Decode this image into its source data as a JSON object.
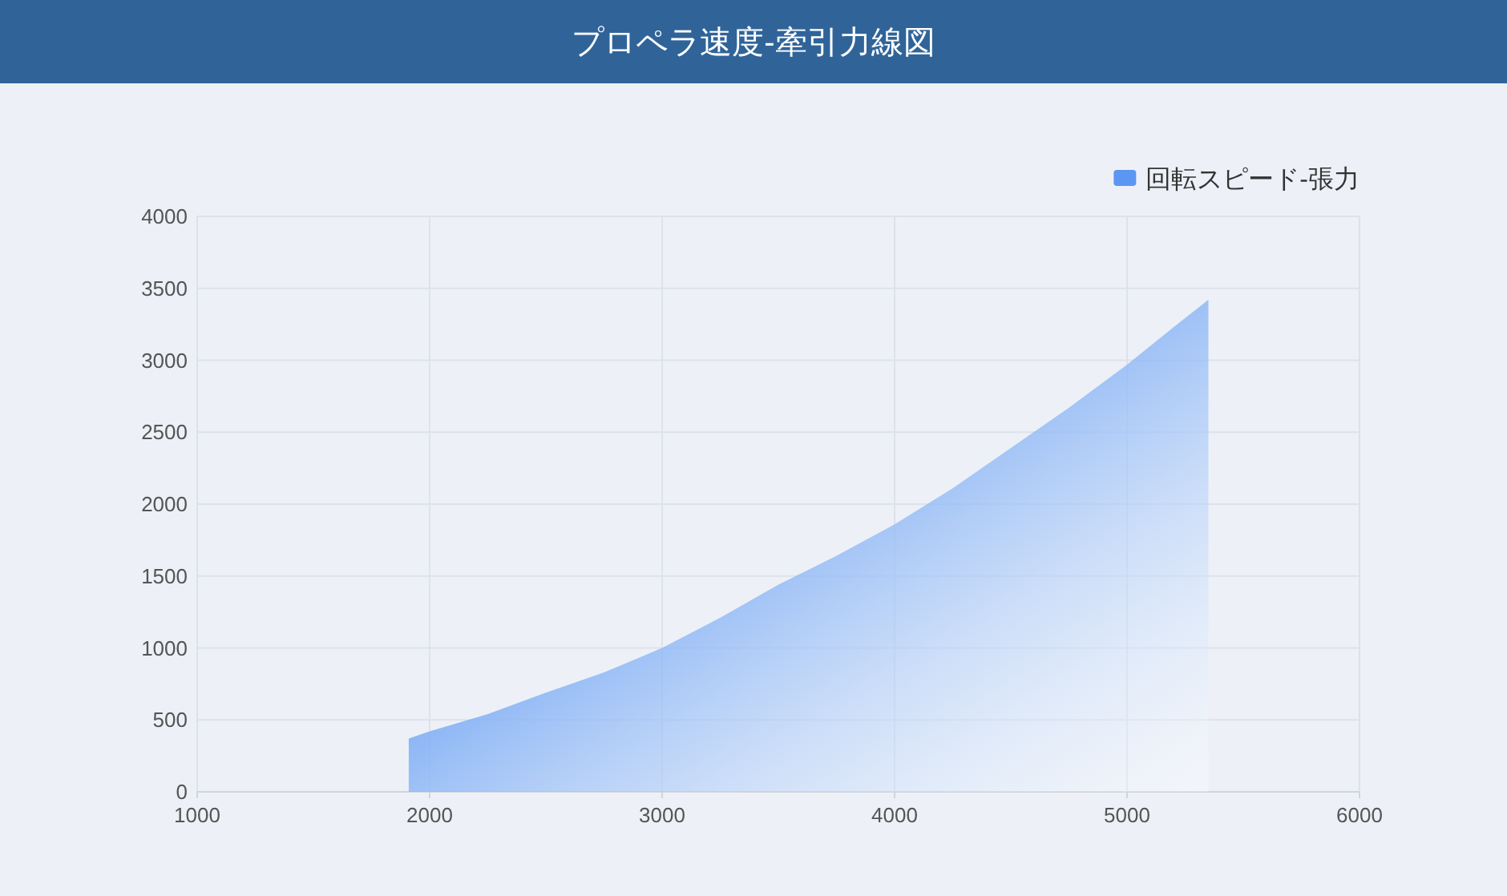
{
  "chart_data": {
    "type": "area",
    "title": "プロペラ速度-牽引力線図",
    "x": [
      1910,
      2000,
      2250,
      2500,
      2750,
      3000,
      3250,
      3500,
      3750,
      4000,
      4250,
      4500,
      4750,
      5000,
      5200,
      5350
    ],
    "series": [
      {
        "name": "回転スピード-張力",
        "color": "#5b97f2",
        "values": [
          370,
          420,
          540,
          690,
          830,
          1000,
          1210,
          1440,
          1640,
          1860,
          2110,
          2390,
          2670,
          2970,
          3230,
          3420
        ]
      }
    ],
    "xlim": [
      1000,
      6000
    ],
    "xticks": [
      1000,
      2000,
      3000,
      4000,
      5000,
      6000
    ],
    "ylim": [
      0,
      4000
    ],
    "yticks": [
      0,
      500,
      1000,
      1500,
      2000,
      2500,
      3000,
      3500,
      4000
    ],
    "grid": true,
    "legend": "top right"
  }
}
